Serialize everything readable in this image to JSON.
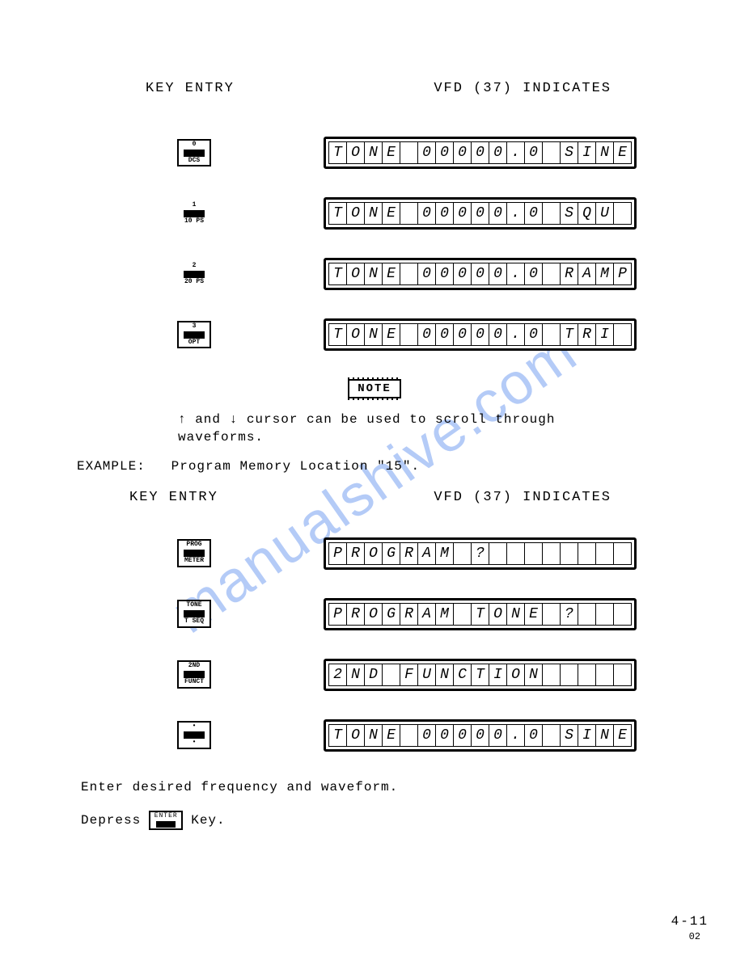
{
  "headers": {
    "key_entry": "KEY ENTRY",
    "vfd_indicates": "VFD (37) INDICATES"
  },
  "section1": {
    "rows": [
      {
        "key": {
          "top": "0",
          "bottom": "DCS",
          "bordered": true
        },
        "vfd": [
          "T",
          "O",
          "N",
          "E",
          "",
          "0",
          "0",
          "0",
          "0",
          "0",
          ".",
          "0",
          "",
          "S",
          "I",
          "N",
          "E"
        ]
      },
      {
        "key": {
          "top": "1",
          "bottom": "10 PS",
          "bordered": false
        },
        "vfd": [
          "T",
          "O",
          "N",
          "E",
          "",
          "0",
          "0",
          "0",
          "0",
          "0",
          ".",
          "0",
          "",
          "S",
          "Q",
          "U",
          ""
        ]
      },
      {
        "key": {
          "top": "2",
          "bottom": "20 PS",
          "bordered": false
        },
        "vfd": [
          "T",
          "O",
          "N",
          "E",
          "",
          "0",
          "0",
          "0",
          "0",
          "0",
          ".",
          "0",
          "",
          "R",
          "A",
          "M",
          "P"
        ]
      },
      {
        "key": {
          "top": "3",
          "bottom": "OPT",
          "bordered": true
        },
        "vfd": [
          "T",
          "O",
          "N",
          "E",
          "",
          "0",
          "0",
          "0",
          "0",
          "0",
          ".",
          "0",
          "",
          "T",
          "R",
          "I",
          ""
        ]
      }
    ]
  },
  "note": {
    "label": "NOTE",
    "text1": "↑ and ↓ cursor can be used to scroll through",
    "text2": "waveforms."
  },
  "example": {
    "label": "EXAMPLE:",
    "text": "Program Memory Location \"15\"."
  },
  "section2": {
    "rows": [
      {
        "key": {
          "top": "PROG",
          "bottom": "METER",
          "bordered": true
        },
        "vfd": [
          "P",
          "R",
          "O",
          "G",
          "R",
          "A",
          "M",
          "",
          "?",
          "",
          "",
          "",
          "",
          "",
          "",
          "",
          ""
        ]
      },
      {
        "key": {
          "top": "TONE",
          "bottom": "T SEQ",
          "bordered": true
        },
        "vfd": [
          "P",
          "R",
          "O",
          "G",
          "R",
          "A",
          "M",
          "",
          "T",
          "O",
          "N",
          "E",
          "",
          "?",
          "",
          "",
          ""
        ]
      },
      {
        "key": {
          "top": "2ND",
          "bottom": "FUNCT",
          "bordered": true
        },
        "vfd": [
          "2",
          "N",
          "D",
          "",
          "F",
          "U",
          "N",
          "C",
          "T",
          "I",
          "O",
          "N",
          "",
          "",
          "",
          "",
          ""
        ]
      },
      {
        "key": {
          "top": "•",
          "bottom": "•",
          "bordered": true
        },
        "vfd": [
          "T",
          "O",
          "N",
          "E",
          "",
          "0",
          "0",
          "0",
          "0",
          "0",
          ".",
          "0",
          "",
          "S",
          "I",
          "N",
          "E"
        ]
      }
    ]
  },
  "instruction": "Enter desired frequency and waveform.",
  "depress": {
    "prefix": "Depress",
    "key_top": "ENTER",
    "suffix": "Key."
  },
  "page_number": "4-11",
  "page_sub": "02",
  "watermark": "manualshive.com"
}
